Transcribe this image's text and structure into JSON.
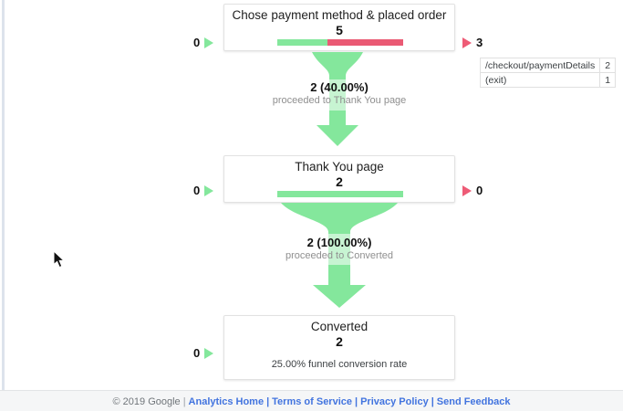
{
  "colors": {
    "green": "#84e79c",
    "red": "#ea5a74",
    "link_blue": "#4274df"
  },
  "icons": {
    "entrance_arrow": "triangle-right-green",
    "exit_arrow": "triangle-right-red",
    "cursor": "mouse-pointer"
  },
  "funnel": {
    "steps": [
      {
        "title": "Chose payment method & placed order",
        "value": "5",
        "entered_left": "0",
        "exited_right": "3",
        "bar_green_pct": 40,
        "exit_table": [
          {
            "label": "/checkout/paymentDetails",
            "value": "2"
          },
          {
            "label": "(exit)",
            "value": "1"
          }
        ]
      },
      {
        "title": "Thank You page",
        "value": "2",
        "entered_left": "0",
        "exited_right": "0",
        "bar_green_pct": 100
      },
      {
        "title": "Converted",
        "value": "2",
        "entered_left": "0",
        "note": "25.00% funnel conversion rate"
      }
    ],
    "transitions": [
      {
        "count_pct": "2 (40.00%)",
        "caption": "proceeded to Thank You page"
      },
      {
        "count_pct": "2 (100.00%)",
        "caption": "proceeded to Converted"
      }
    ]
  },
  "footer": {
    "copyright": "© 2019 Google",
    "separator": "|",
    "links": [
      "Analytics Home",
      "Terms of Service",
      "Privacy Policy",
      "Send Feedback"
    ]
  }
}
